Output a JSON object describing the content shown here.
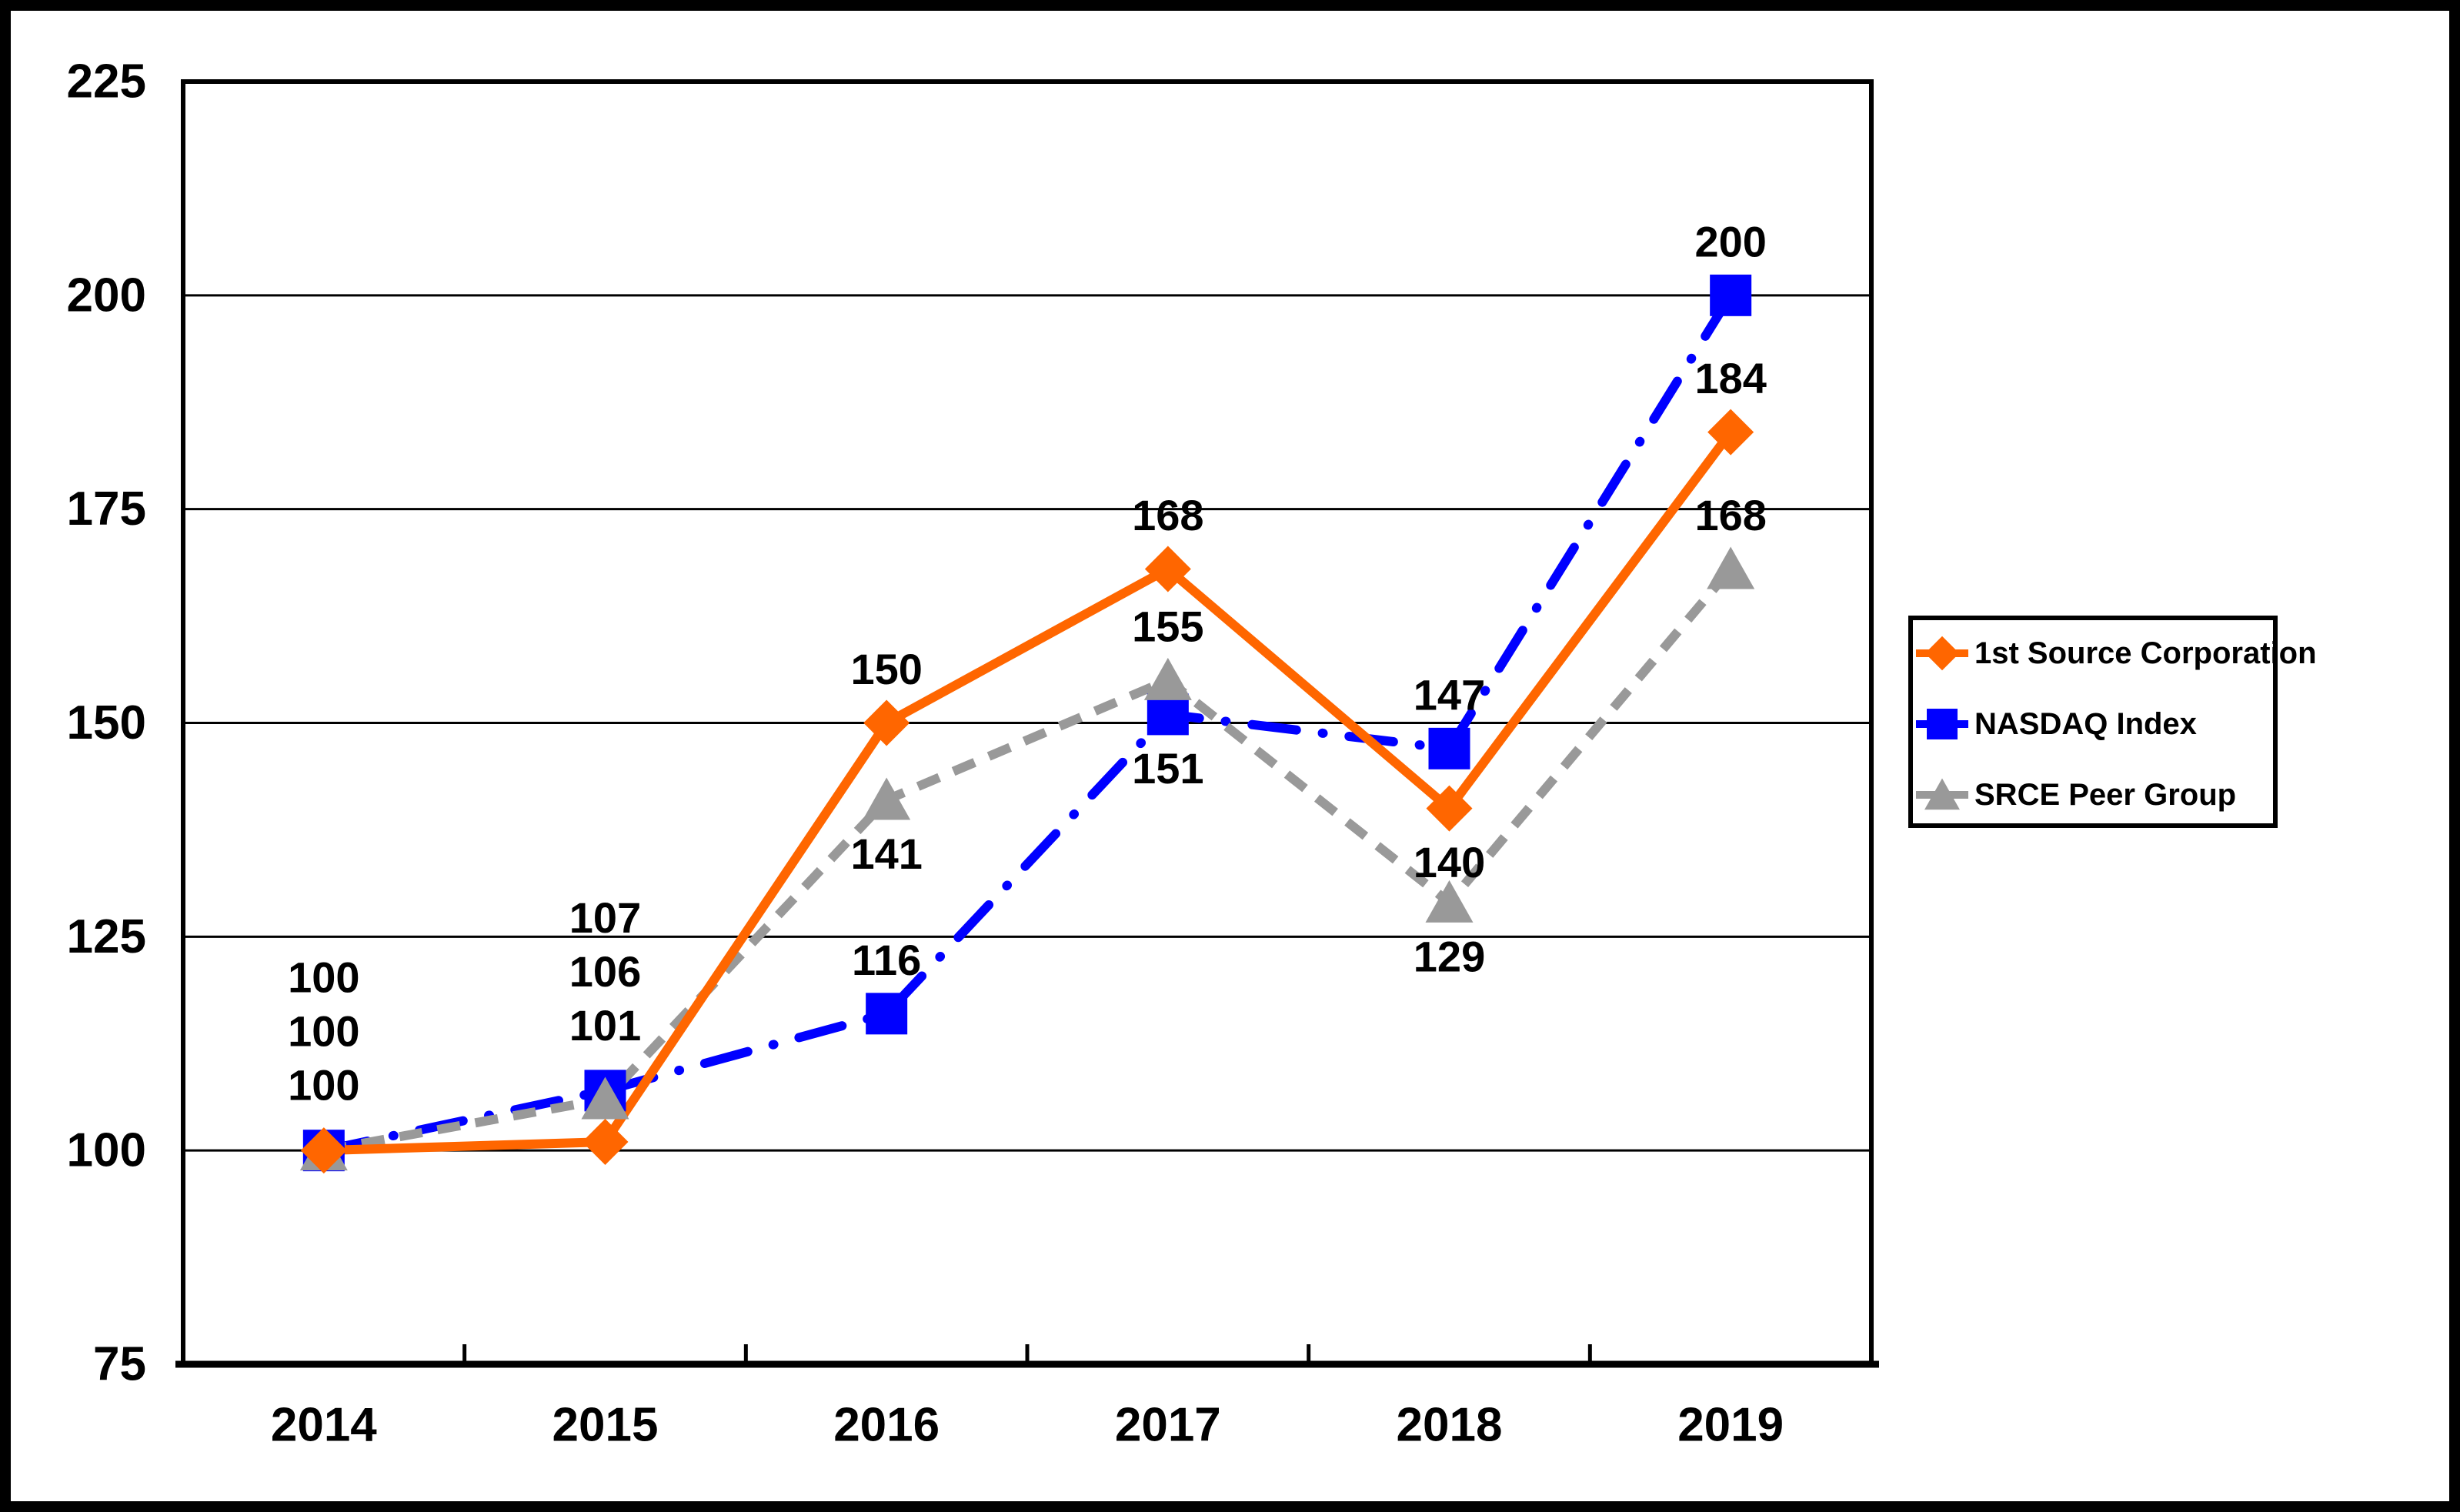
{
  "chart_data": {
    "type": "line",
    "title": "",
    "categories": [
      "2014",
      "2015",
      "2016",
      "2017",
      "2018",
      "2019"
    ],
    "series": [
      {
        "name": "1st Source Corporation",
        "slug": "first-source-corporation",
        "color": "#FF6600",
        "marker": "diamond",
        "line_style": "solid",
        "values": [
          100,
          101,
          150,
          168,
          140,
          184
        ],
        "labels": [
          "100",
          "101",
          "150",
          "168",
          "140",
          "184"
        ],
        "label_pos": [
          "stack2",
          "stack2",
          "above",
          "above",
          "below",
          "above"
        ]
      },
      {
        "name": "NASDAQ Index",
        "slug": "nasdaq-index",
        "color": "#0000FF",
        "marker": "square",
        "line_style": "dash-dot",
        "values": [
          100,
          107,
          116,
          151,
          147,
          200
        ],
        "labels": [
          "100",
          "107",
          "116",
          "151",
          "147",
          "200"
        ],
        "label_pos": [
          "stack0",
          "stack0",
          "above",
          "below",
          "above",
          "above"
        ]
      },
      {
        "name": "SRCE Peer Group",
        "slug": "srce-peer-group",
        "color": "#999999",
        "marker": "triangle",
        "line_style": "dashed",
        "values": [
          100,
          106,
          141,
          155,
          129,
          168
        ],
        "labels": [
          "100",
          "106",
          "141",
          "155",
          "129",
          "168"
        ],
        "label_pos": [
          "stack1",
          "stack1",
          "below",
          "above",
          "below",
          "above"
        ]
      }
    ],
    "y_axis": {
      "min": 75,
      "max": 225,
      "step": 25,
      "tick_labels": [
        "225",
        "200",
        "175",
        "150",
        "125",
        "100",
        "75"
      ]
    },
    "x_axis": {
      "tick_labels": [
        "2014",
        "2015",
        "2016",
        "2017",
        "2018",
        "2019"
      ]
    },
    "legend": {
      "position": "middle-right",
      "entries": [
        "1st Source Corporation",
        "NASDAQ Index",
        "SRCE Peer Group"
      ]
    },
    "grid": true,
    "background": "#FFFFFF",
    "text_color": "#000000",
    "axis_color": "#000000",
    "border_color": "#000000"
  }
}
